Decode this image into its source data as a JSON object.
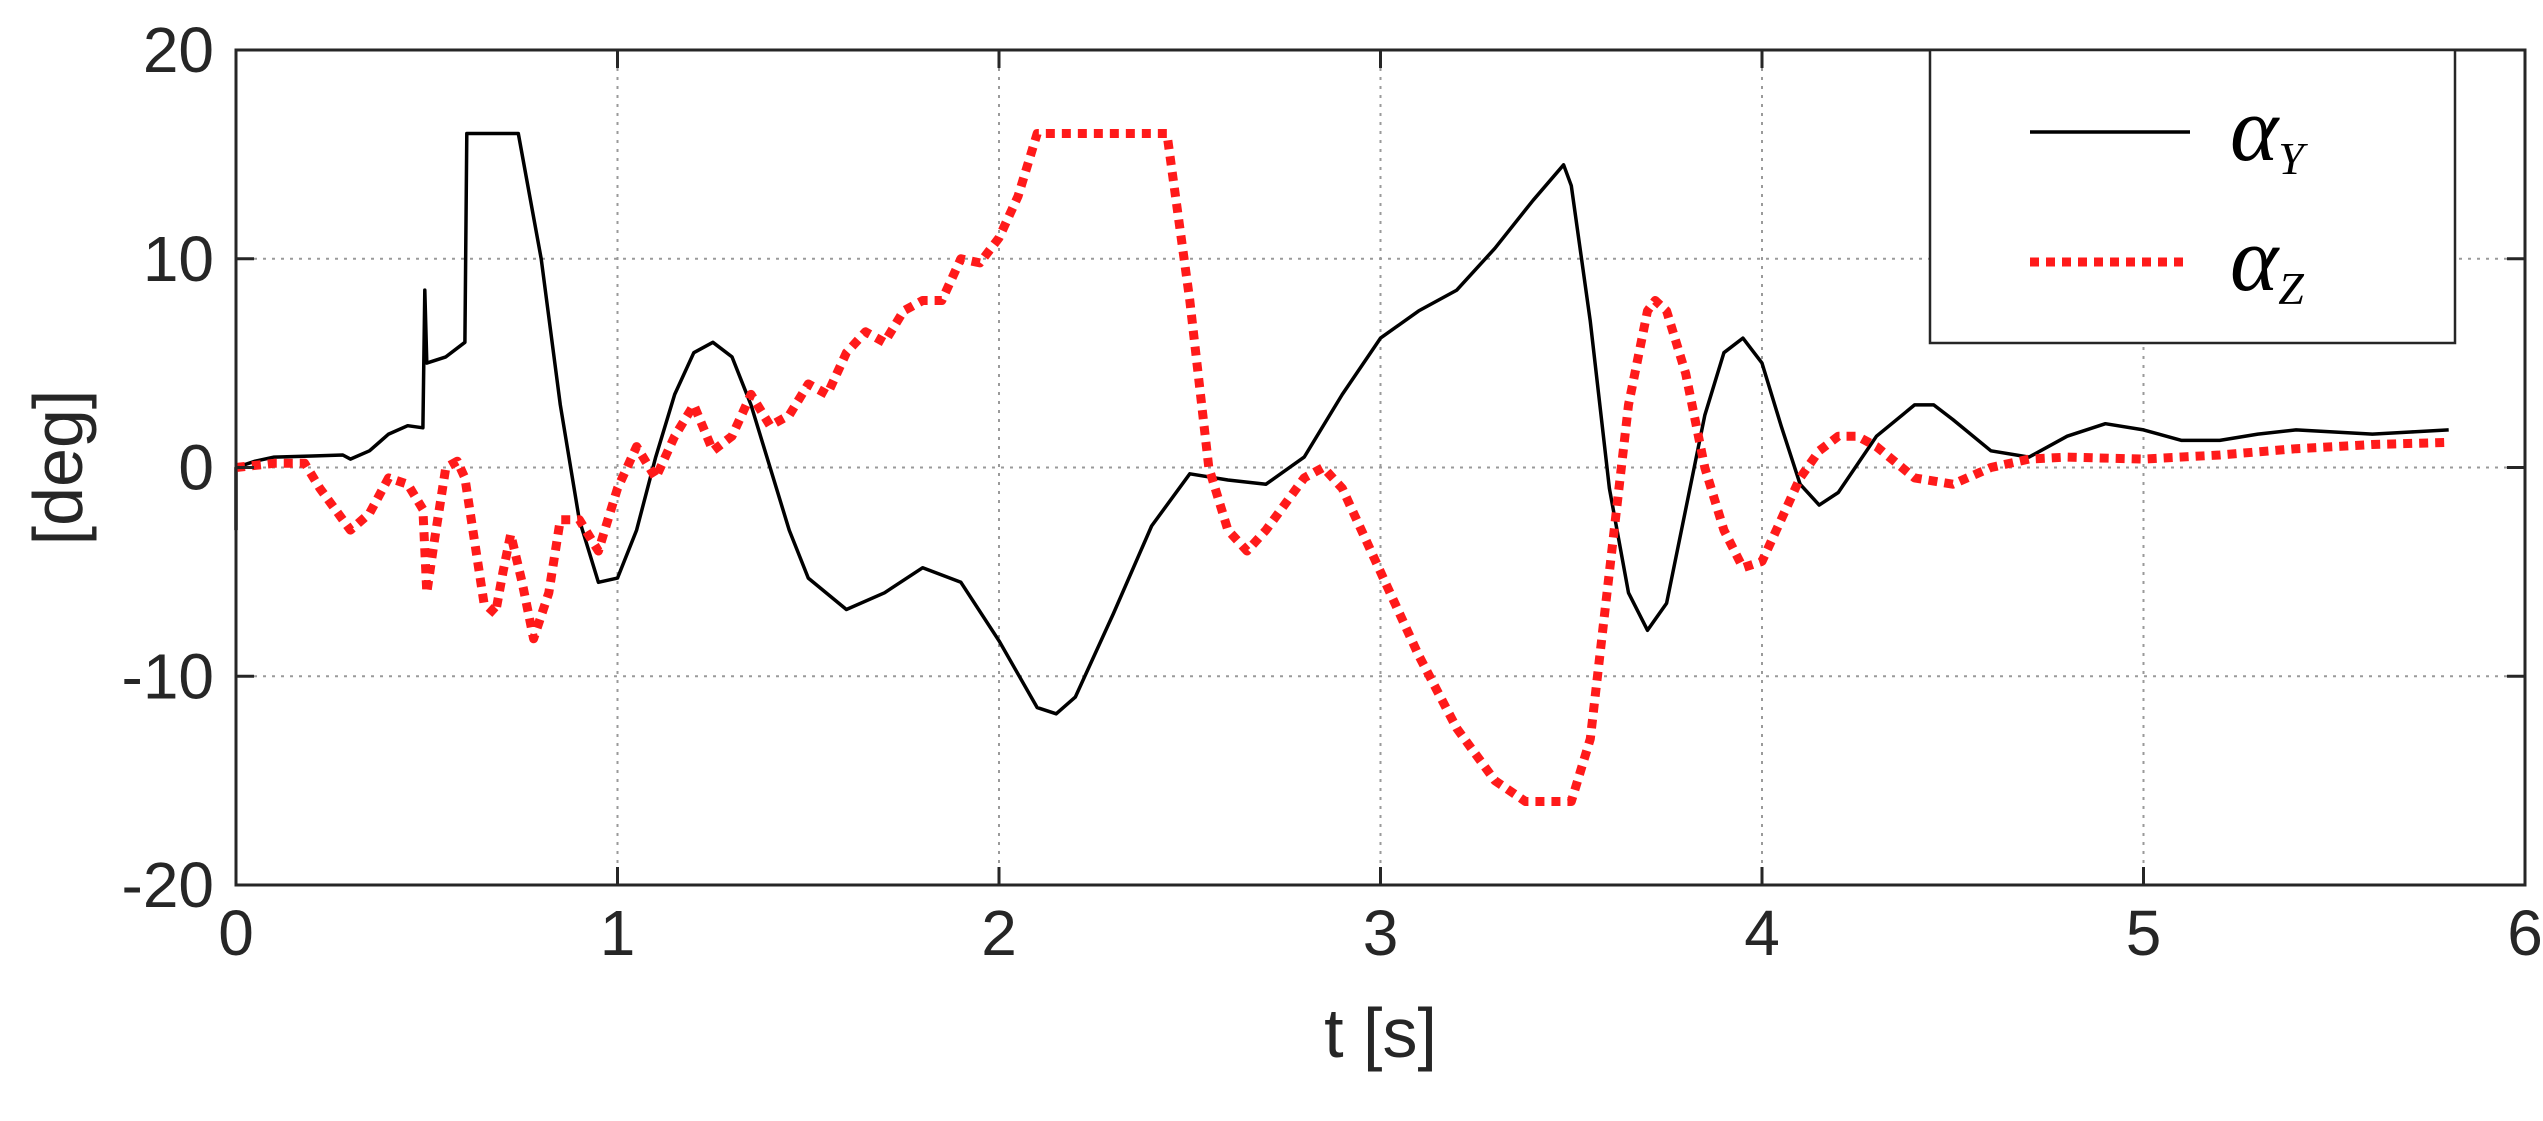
{
  "chart_data": {
    "type": "line",
    "title": "",
    "xlabel": "t [s]",
    "ylabel": "[deg]",
    "xlim": [
      0,
      6
    ],
    "ylim": [
      -20,
      20
    ],
    "xticks": [
      0,
      1,
      2,
      3,
      4,
      5,
      6
    ],
    "yticks": [
      -20,
      -10,
      0,
      10,
      20
    ],
    "grid": true,
    "legend_position": "top-right",
    "series": [
      {
        "name": "α",
        "subscript": "Y",
        "color": "#000000",
        "style": "solid",
        "points": [
          [
            0.0,
            -3.0
          ],
          [
            0.0,
            0.0
          ],
          [
            0.05,
            0.3
          ],
          [
            0.1,
            0.5
          ],
          [
            0.2,
            0.55
          ],
          [
            0.28,
            0.6
          ],
          [
            0.3,
            0.4
          ],
          [
            0.35,
            0.8
          ],
          [
            0.4,
            1.6
          ],
          [
            0.45,
            2.0
          ],
          [
            0.49,
            1.9
          ],
          [
            0.495,
            8.5
          ],
          [
            0.5,
            5.0
          ],
          [
            0.55,
            5.3
          ],
          [
            0.6,
            6.0
          ],
          [
            0.605,
            16.0
          ],
          [
            0.65,
            16.0
          ],
          [
            0.74,
            16.0
          ],
          [
            0.8,
            10.0
          ],
          [
            0.85,
            3.0
          ],
          [
            0.9,
            -2.5
          ],
          [
            0.95,
            -5.5
          ],
          [
            1.0,
            -5.3
          ],
          [
            1.05,
            -3.0
          ],
          [
            1.1,
            0.5
          ],
          [
            1.15,
            3.5
          ],
          [
            1.2,
            5.5
          ],
          [
            1.25,
            6.0
          ],
          [
            1.3,
            5.3
          ],
          [
            1.35,
            3.0
          ],
          [
            1.4,
            0.0
          ],
          [
            1.45,
            -3.0
          ],
          [
            1.5,
            -5.3
          ],
          [
            1.6,
            -6.8
          ],
          [
            1.7,
            -6.0
          ],
          [
            1.8,
            -4.8
          ],
          [
            1.9,
            -5.5
          ],
          [
            2.0,
            -8.3
          ],
          [
            2.1,
            -11.5
          ],
          [
            2.15,
            -11.8
          ],
          [
            2.2,
            -11.0
          ],
          [
            2.3,
            -7.0
          ],
          [
            2.4,
            -2.8
          ],
          [
            2.5,
            -0.3
          ],
          [
            2.6,
            -0.6
          ],
          [
            2.7,
            -0.8
          ],
          [
            2.8,
            0.5
          ],
          [
            2.9,
            3.5
          ],
          [
            3.0,
            6.2
          ],
          [
            3.1,
            7.5
          ],
          [
            3.2,
            8.5
          ],
          [
            3.3,
            10.5
          ],
          [
            3.4,
            12.8
          ],
          [
            3.48,
            14.5
          ],
          [
            3.5,
            13.5
          ],
          [
            3.55,
            7.0
          ],
          [
            3.6,
            -1.0
          ],
          [
            3.65,
            -6.0
          ],
          [
            3.7,
            -7.8
          ],
          [
            3.75,
            -6.5
          ],
          [
            3.8,
            -2.0
          ],
          [
            3.85,
            2.5
          ],
          [
            3.9,
            5.5
          ],
          [
            3.95,
            6.2
          ],
          [
            4.0,
            5.0
          ],
          [
            4.05,
            2.0
          ],
          [
            4.1,
            -0.8
          ],
          [
            4.15,
            -1.8
          ],
          [
            4.2,
            -1.2
          ],
          [
            4.3,
            1.5
          ],
          [
            4.4,
            3.0
          ],
          [
            4.45,
            3.0
          ],
          [
            4.5,
            2.3
          ],
          [
            4.6,
            0.8
          ],
          [
            4.7,
            0.5
          ],
          [
            4.8,
            1.5
          ],
          [
            4.9,
            2.1
          ],
          [
            5.0,
            1.8
          ],
          [
            5.1,
            1.3
          ],
          [
            5.2,
            1.3
          ],
          [
            5.3,
            1.6
          ],
          [
            5.4,
            1.8
          ],
          [
            5.5,
            1.7
          ],
          [
            5.6,
            1.6
          ],
          [
            5.7,
            1.7
          ],
          [
            5.8,
            1.8
          ]
        ]
      },
      {
        "name": "α",
        "subscript": "Z",
        "color": "#ff1a1a",
        "style": "dotted",
        "points": [
          [
            0.0,
            0.0
          ],
          [
            0.1,
            0.2
          ],
          [
            0.18,
            0.2
          ],
          [
            0.22,
            -1.0
          ],
          [
            0.3,
            -3.0
          ],
          [
            0.35,
            -2.2
          ],
          [
            0.4,
            -0.5
          ],
          [
            0.45,
            -0.8
          ],
          [
            0.49,
            -2.0
          ],
          [
            0.5,
            -6.0
          ],
          [
            0.52,
            -3.5
          ],
          [
            0.55,
            0.0
          ],
          [
            0.58,
            0.3
          ],
          [
            0.6,
            -0.5
          ],
          [
            0.65,
            -6.5
          ],
          [
            0.68,
            -7.0
          ],
          [
            0.7,
            -5.0
          ],
          [
            0.72,
            -3.2
          ],
          [
            0.75,
            -5.5
          ],
          [
            0.78,
            -8.2
          ],
          [
            0.82,
            -6.0
          ],
          [
            0.85,
            -2.5
          ],
          [
            0.9,
            -2.5
          ],
          [
            0.95,
            -4.0
          ],
          [
            1.0,
            -1.0
          ],
          [
            1.05,
            1.0
          ],
          [
            1.1,
            -0.5
          ],
          [
            1.15,
            1.5
          ],
          [
            1.2,
            3.0
          ],
          [
            1.25,
            0.8
          ],
          [
            1.3,
            1.5
          ],
          [
            1.35,
            3.5
          ],
          [
            1.4,
            2.0
          ],
          [
            1.45,
            2.5
          ],
          [
            1.5,
            4.0
          ],
          [
            1.55,
            3.5
          ],
          [
            1.6,
            5.5
          ],
          [
            1.65,
            6.5
          ],
          [
            1.7,
            6.0
          ],
          [
            1.75,
            7.5
          ],
          [
            1.8,
            8.0
          ],
          [
            1.85,
            8.0
          ],
          [
            1.9,
            10.0
          ],
          [
            1.95,
            9.8
          ],
          [
            2.0,
            11.0
          ],
          [
            2.05,
            13.0
          ],
          [
            2.1,
            16.0
          ],
          [
            2.2,
            16.0
          ],
          [
            2.44,
            16.0
          ],
          [
            2.5,
            8.0
          ],
          [
            2.55,
            0.0
          ],
          [
            2.6,
            -3.0
          ],
          [
            2.65,
            -4.0
          ],
          [
            2.7,
            -3.0
          ],
          [
            2.8,
            -0.5
          ],
          [
            2.85,
            0.0
          ],
          [
            2.9,
            -1.0
          ],
          [
            3.0,
            -5.0
          ],
          [
            3.1,
            -9.0
          ],
          [
            3.2,
            -12.5
          ],
          [
            3.3,
            -15.0
          ],
          [
            3.38,
            -16.0
          ],
          [
            3.5,
            -16.0
          ],
          [
            3.55,
            -13.0
          ],
          [
            3.6,
            -5.0
          ],
          [
            3.65,
            3.0
          ],
          [
            3.7,
            7.5
          ],
          [
            3.72,
            8.0
          ],
          [
            3.75,
            7.5
          ],
          [
            3.8,
            4.5
          ],
          [
            3.85,
            0.0
          ],
          [
            3.9,
            -3.0
          ],
          [
            3.95,
            -4.8
          ],
          [
            4.0,
            -4.5
          ],
          [
            4.05,
            -2.5
          ],
          [
            4.1,
            -0.5
          ],
          [
            4.15,
            0.8
          ],
          [
            4.2,
            1.5
          ],
          [
            4.25,
            1.5
          ],
          [
            4.3,
            1.0
          ],
          [
            4.4,
            -0.5
          ],
          [
            4.5,
            -0.8
          ],
          [
            4.6,
            0.0
          ],
          [
            4.7,
            0.4
          ],
          [
            4.8,
            0.5
          ],
          [
            5.0,
            0.4
          ],
          [
            5.2,
            0.6
          ],
          [
            5.4,
            0.9
          ],
          [
            5.6,
            1.1
          ],
          [
            5.8,
            1.2
          ]
        ]
      }
    ]
  }
}
